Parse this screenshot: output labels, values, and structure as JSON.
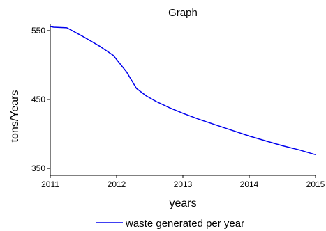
{
  "chart_data": {
    "type": "line",
    "title": "Graph",
    "xlabel": "years",
    "ylabel": "tons/Years",
    "xlim": [
      2011,
      2015
    ],
    "ylim": [
      340,
      560
    ],
    "x_ticks": [
      2011,
      2012,
      2013,
      2014,
      2015
    ],
    "y_ticks": [
      350,
      450,
      550
    ],
    "grid": false,
    "legend_position": "bottom",
    "series": [
      {
        "name": "waste generated per year",
        "color": "#0000ee",
        "x": [
          2011.0,
          2011.05,
          2011.25,
          2011.5,
          2011.75,
          2011.95,
          2012.15,
          2012.3,
          2012.45,
          2012.6,
          2012.8,
          2013.0,
          2013.25,
          2013.5,
          2013.75,
          2014.0,
          2014.25,
          2014.5,
          2014.75,
          2015.0
        ],
        "y": [
          556,
          555,
          554,
          541,
          527,
          514,
          490,
          466,
          455,
          447,
          438,
          430,
          421,
          413,
          405,
          397,
          390,
          383,
          377,
          370
        ]
      }
    ]
  }
}
